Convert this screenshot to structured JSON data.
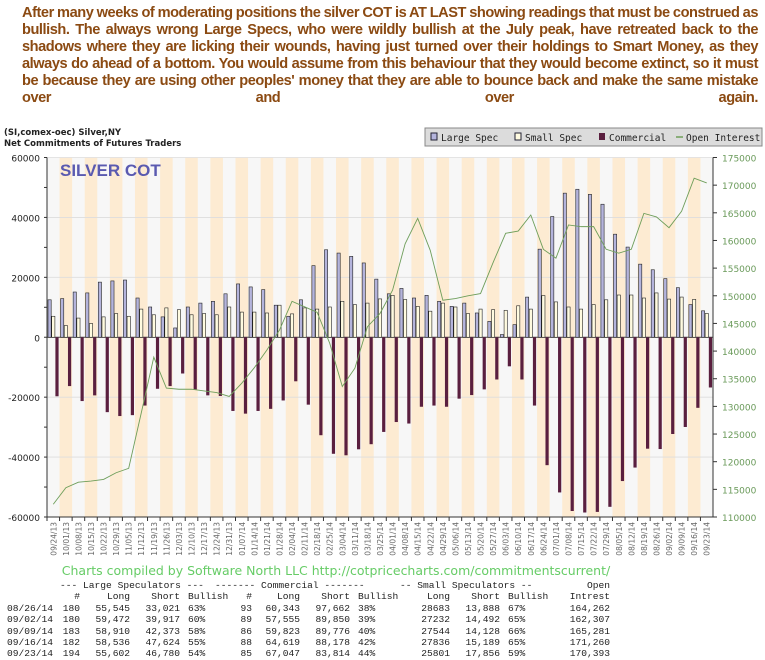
{
  "commentary": "After many weeks of moderating positions the silver COT is AT LAST showing readings that must be construed as bullish. The always wrong Large Specs, who were wildly bullish at the July peak, have retreated back to the shadows where they are licking their wounds, having just turned over their holdings to Smart Money, as they always do ahead of a bottom. You would assume from this behaviour that they would become extinct, so it must be because they are using other peoples' money that they are able to bounce back and make the same mistake over and over again.",
  "chart_header": {
    "line1": "(SI,comex-oec) Silver,NY",
    "line2": "Net Commitments of Futures Traders"
  },
  "credit": "Charts compiled by Software North LLC  http://cotpricecharts.com/commitmentscurrent/",
  "colors": {
    "large_spec": "#b4b4dc",
    "small_spec": "#fffbe0",
    "commercial": "#5a1f3f",
    "open_interest": "#6e9e5a",
    "stripe": "#fdebd2",
    "title": "#5a5ab0",
    "commentary": "#8b4a12",
    "credit": "#66cc66"
  },
  "chart_data": {
    "type": "bar",
    "title": "SILVER COT",
    "legend": {
      "placement": "top-right",
      "items": [
        "Large Spec",
        "Small Spec",
        "Commercial",
        "Open Interest"
      ]
    },
    "grid": true,
    "ylim": [
      -60000,
      60000
    ],
    "yticks": [
      60000,
      40000,
      20000,
      0,
      -20000,
      -40000,
      -60000
    ],
    "y2lim": [
      110000,
      175000
    ],
    "y2ticks": [
      175000,
      170000,
      165000,
      160000,
      155000,
      150000,
      145000,
      140000,
      135000,
      130000,
      125000,
      120000,
      115000,
      110000
    ],
    "categories": [
      "09/24/13",
      "10/01/13",
      "10/08/13",
      "10/15/13",
      "10/22/13",
      "10/29/13",
      "11/05/13",
      "11/12/13",
      "11/19/13",
      "11/26/13",
      "12/03/13",
      "12/10/13",
      "12/17/13",
      "12/24/13",
      "12/31/13",
      "01/07/14",
      "01/14/14",
      "01/21/14",
      "01/28/14",
      "02/04/14",
      "02/11/14",
      "02/18/14",
      "02/25/14",
      "03/04/14",
      "03/11/14",
      "03/18/14",
      "03/25/14",
      "04/01/14",
      "04/08/14",
      "04/15/14",
      "04/22/14",
      "04/29/14",
      "05/06/14",
      "05/13/14",
      "05/20/14",
      "05/27/14",
      "06/03/14",
      "06/10/14",
      "06/17/14",
      "06/24/14",
      "07/01/14",
      "07/08/14",
      "07/15/14",
      "07/22/14",
      "07/29/14",
      "08/05/14",
      "08/12/14",
      "08/19/14",
      "08/26/14",
      "09/02/14",
      "09/09/14",
      "09/16/14",
      "09/23/14"
    ],
    "series": [
      {
        "name": "Large Spec",
        "type": "bar",
        "axis": "left",
        "values": [
          12500,
          12900,
          15100,
          14800,
          18400,
          18800,
          19100,
          13100,
          10100,
          6800,
          3100,
          10100,
          11400,
          12000,
          14500,
          17800,
          16800,
          15900,
          10700,
          7000,
          12500,
          23900,
          29200,
          28100,
          27000,
          24800,
          19400,
          14500,
          16300,
          13100,
          14000,
          12000,
          10300,
          11400,
          8100,
          5300,
          900,
          4200,
          13400,
          29400,
          40300,
          48100,
          49400,
          47700,
          44400,
          34400,
          30100,
          24400,
          22524,
          19555,
          16537,
          10912,
          8822
        ]
      },
      {
        "name": "Small Spec",
        "type": "bar",
        "axis": "left",
        "values": [
          7000,
          3900,
          6400,
          4600,
          6800,
          7900,
          7000,
          9400,
          7500,
          9800,
          9200,
          7500,
          7900,
          7500,
          10100,
          8400,
          8400,
          8100,
          10700,
          7800,
          9800,
          9400,
          10100,
          12000,
          10900,
          11400,
          12800,
          14000,
          12600,
          10300,
          8700,
          11400,
          10100,
          7900,
          9400,
          9200,
          9000,
          10500,
          9400,
          13900,
          11800,
          10100,
          9400,
          10900,
          12500,
          14100,
          14100,
          13100,
          14795,
          12740,
          13416,
          12647,
          7945
        ]
      },
      {
        "name": "Commercial",
        "type": "bar",
        "axis": "left",
        "values": [
          -19700,
          -16300,
          -21300,
          -19400,
          -25000,
          -26300,
          -26000,
          -22800,
          -17200,
          -16300,
          -12100,
          -17400,
          -19400,
          -19600,
          -24600,
          -25500,
          -24600,
          -23900,
          -21100,
          -14700,
          -22500,
          -32700,
          -38900,
          -39400,
          -37400,
          -35700,
          -31600,
          -28300,
          -28800,
          -23200,
          -22800,
          -23200,
          -20500,
          -19300,
          -17400,
          -14100,
          -9700,
          -14100,
          -22800,
          -42700,
          -51800,
          -58000,
          -58500,
          -58300,
          -56600,
          -48000,
          -43500,
          -37200,
          -37319,
          -32295,
          -29953,
          -23559,
          -16767
        ]
      },
      {
        "name": "Open Interest",
        "type": "line",
        "axis": "right",
        "values": [
          112300,
          115300,
          116300,
          116500,
          116800,
          118000,
          118800,
          128800,
          138900,
          133300,
          133100,
          133100,
          132800,
          132500,
          131800,
          134200,
          137000,
          140200,
          143800,
          149000,
          148000,
          147000,
          141400,
          133600,
          136900,
          144400,
          146800,
          151000,
          159400,
          164000,
          158200,
          149200,
          149500,
          150000,
          150400,
          156000,
          161300,
          161700,
          164600,
          158400,
          156800,
          162800,
          162500,
          162500,
          158400,
          157700,
          158400,
          164900,
          164262,
          162307,
          165281,
          171260,
          170393
        ]
      }
    ]
  },
  "table": {
    "groups": [
      "--- Large Speculators ---",
      "------- Commercial -------",
      "-- Small Speculators --",
      "Open"
    ],
    "headers": [
      "#",
      "Long",
      "Short",
      "Bullish",
      "#",
      "Long",
      "Short",
      "Bullish",
      "Long",
      "Short",
      "Bullish",
      "Intrest"
    ],
    "rows": [
      [
        "08/26/14",
        "180",
        "55,545",
        "33,021",
        "63%",
        "93",
        "60,343",
        "97,662",
        "38%",
        "28683",
        "13,888",
        "67%",
        "164,262"
      ],
      [
        "09/02/14",
        "180",
        "59,472",
        "39,917",
        "60%",
        "89",
        "57,555",
        "89,850",
        "39%",
        "27232",
        "14,492",
        "65%",
        "162,307"
      ],
      [
        "09/09/14",
        "183",
        "58,910",
        "42,373",
        "58%",
        "86",
        "59,823",
        "89,776",
        "40%",
        "27544",
        "14,128",
        "66%",
        "165,281"
      ],
      [
        "09/16/14",
        "182",
        "58,536",
        "47,624",
        "55%",
        "88",
        "64,619",
        "88,178",
        "42%",
        "27836",
        "15,189",
        "65%",
        "171,260"
      ],
      [
        "09/23/14",
        "194",
        "55,602",
        "46,780",
        "54%",
        "85",
        "67,047",
        "83,814",
        "44%",
        "25801",
        "17,856",
        "59%",
        "170,393"
      ]
    ]
  }
}
